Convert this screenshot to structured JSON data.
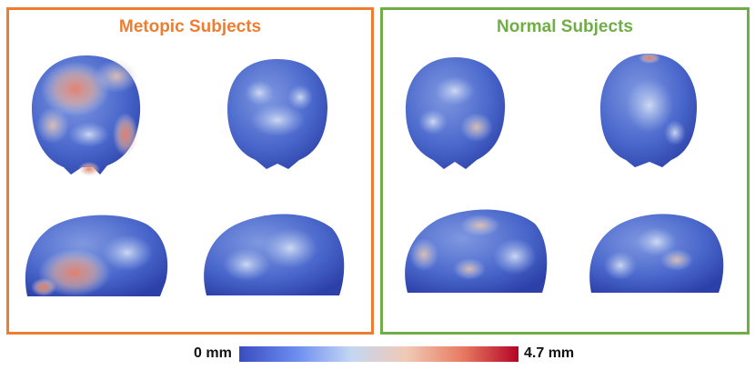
{
  "panels": {
    "metopic": {
      "title": "Metopic Subjects",
      "color": "#ed7d31"
    },
    "normal": {
      "title": "Normal Subjects",
      "color": "#70ad47"
    }
  },
  "colorbar": {
    "min_label": "0 mm",
    "max_label": "4.7 mm",
    "colors": [
      "#3a4cc0",
      "#6a8bef",
      "#c3d6f3",
      "#f1c9b4",
      "#e77b62",
      "#b40426"
    ]
  }
}
